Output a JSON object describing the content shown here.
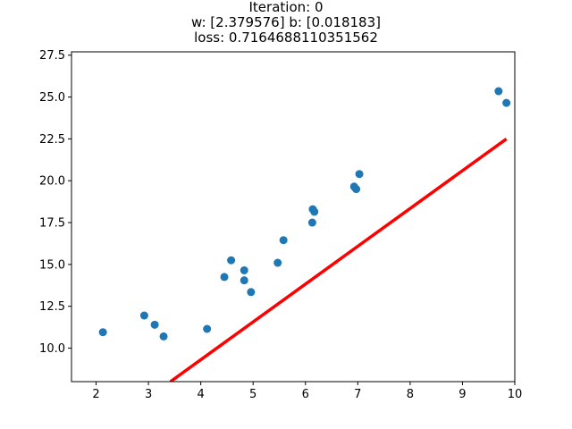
{
  "chart_data": {
    "type": "scatter",
    "title_lines": [
      "Iteration: 0",
      "w: [2.379576] b: [0.018183]",
      "loss: 0.7164688110351562"
    ],
    "xlabel": "",
    "ylabel": "",
    "xlim": [
      1.53,
      10.0
    ],
    "ylim": [
      8.0,
      27.7
    ],
    "x_ticks": [
      "2",
      "3",
      "4",
      "5",
      "6",
      "7",
      "8",
      "9",
      "10"
    ],
    "y_ticks": [
      "10.0",
      "12.5",
      "15.0",
      "17.5",
      "20.0",
      "22.5",
      "25.0",
      "27.5"
    ],
    "grid": false,
    "series": [
      {
        "kind": "scatter",
        "color": "#1f77b4",
        "points": [
          {
            "x": 2.13,
            "y": 10.95
          },
          {
            "x": 2.92,
            "y": 11.95
          },
          {
            "x": 3.12,
            "y": 11.4
          },
          {
            "x": 3.29,
            "y": 10.7
          },
          {
            "x": 4.12,
            "y": 11.15
          },
          {
            "x": 4.45,
            "y": 14.25
          },
          {
            "x": 4.58,
            "y": 15.25
          },
          {
            "x": 4.83,
            "y": 14.65
          },
          {
            "x": 4.83,
            "y": 14.05
          },
          {
            "x": 4.96,
            "y": 13.35
          },
          {
            "x": 5.47,
            "y": 15.1
          },
          {
            "x": 5.58,
            "y": 16.45
          },
          {
            "x": 6.13,
            "y": 17.5
          },
          {
            "x": 6.14,
            "y": 18.3
          },
          {
            "x": 6.17,
            "y": 18.15
          },
          {
            "x": 6.93,
            "y": 19.65
          },
          {
            "x": 6.97,
            "y": 19.5
          },
          {
            "x": 7.03,
            "y": 20.4
          },
          {
            "x": 9.69,
            "y": 25.35
          },
          {
            "x": 9.84,
            "y": 24.65
          }
        ]
      },
      {
        "kind": "line",
        "color": "#ff0000",
        "points": [
          {
            "x": 3.42,
            "y": 8.0
          },
          {
            "x": 9.84,
            "y": 22.5
          }
        ]
      }
    ]
  }
}
